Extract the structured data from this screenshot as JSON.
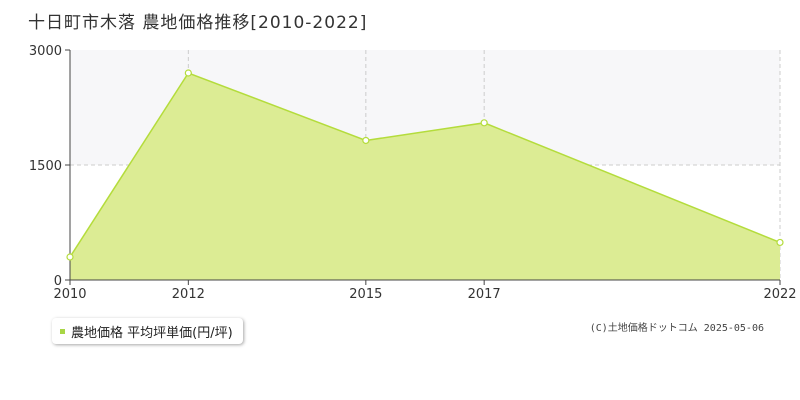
{
  "title": "十日町市木落 農地価格推移[2010-2022]",
  "legend_label": "農地価格 平均坪単価(円/坪)",
  "copyright": "(C)土地価格ドットコム 2025-05-06",
  "colors": {
    "fill": "#dcec94",
    "line": "#b4dc3c",
    "point_fill": "#ffffff",
    "grid": "#cccccc",
    "axis": "#444444",
    "legend_swatch": "#a8d645",
    "upper_band": "#f7f7f9"
  },
  "chart_data": {
    "type": "area",
    "title": "十日町市木落 農地価格推移[2010-2022]",
    "xlabel": "",
    "ylabel": "",
    "x": [
      2010,
      2012,
      2015,
      2017,
      2022
    ],
    "x_ticks": [
      "2010",
      "2012",
      "2015",
      "2017",
      "2022"
    ],
    "xlim": [
      2010,
      2022
    ],
    "ylim": [
      0,
      3000
    ],
    "y_ticks": [
      "0",
      "1500",
      "3000"
    ],
    "series": [
      {
        "name": "農地価格 平均坪単価(円/坪)",
        "values": [
          300,
          2700,
          1820,
          2050,
          490
        ]
      }
    ],
    "grid": true,
    "legend": "bottom-left"
  }
}
